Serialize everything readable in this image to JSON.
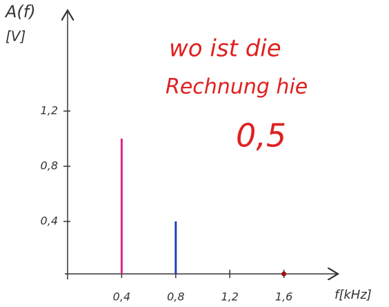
{
  "chart_data": {
    "type": "stem",
    "ylabel": "A(f)",
    "yunit": "[V]",
    "xlabel": "f[kHz]",
    "xlim": [
      0,
      2.0
    ],
    "ylim": [
      0,
      1.9
    ],
    "xticks": [
      {
        "value": 0.4,
        "label": "0,4"
      },
      {
        "value": 0.8,
        "label": "0,8"
      },
      {
        "value": 1.2,
        "label": "1,2"
      },
      {
        "value": 1.6,
        "label": "1,6"
      }
    ],
    "yticks": [
      {
        "value": 0.4,
        "label": "0,4"
      },
      {
        "value": 0.8,
        "label": "0,8"
      },
      {
        "value": 1.2,
        "label": "1,2"
      }
    ],
    "series": [
      {
        "color": "#e0248c",
        "x": [
          0.4
        ],
        "values": [
          1.0
        ]
      },
      {
        "color": "#2040c0",
        "x": [
          0.8
        ],
        "values": [
          0.4
        ]
      },
      {
        "color": "#a01010",
        "x": [
          1.6
        ],
        "values": [
          0
        ]
      }
    ],
    "annotations": [
      "wo ist die",
      "Rechnung hie",
      "0,5"
    ]
  }
}
